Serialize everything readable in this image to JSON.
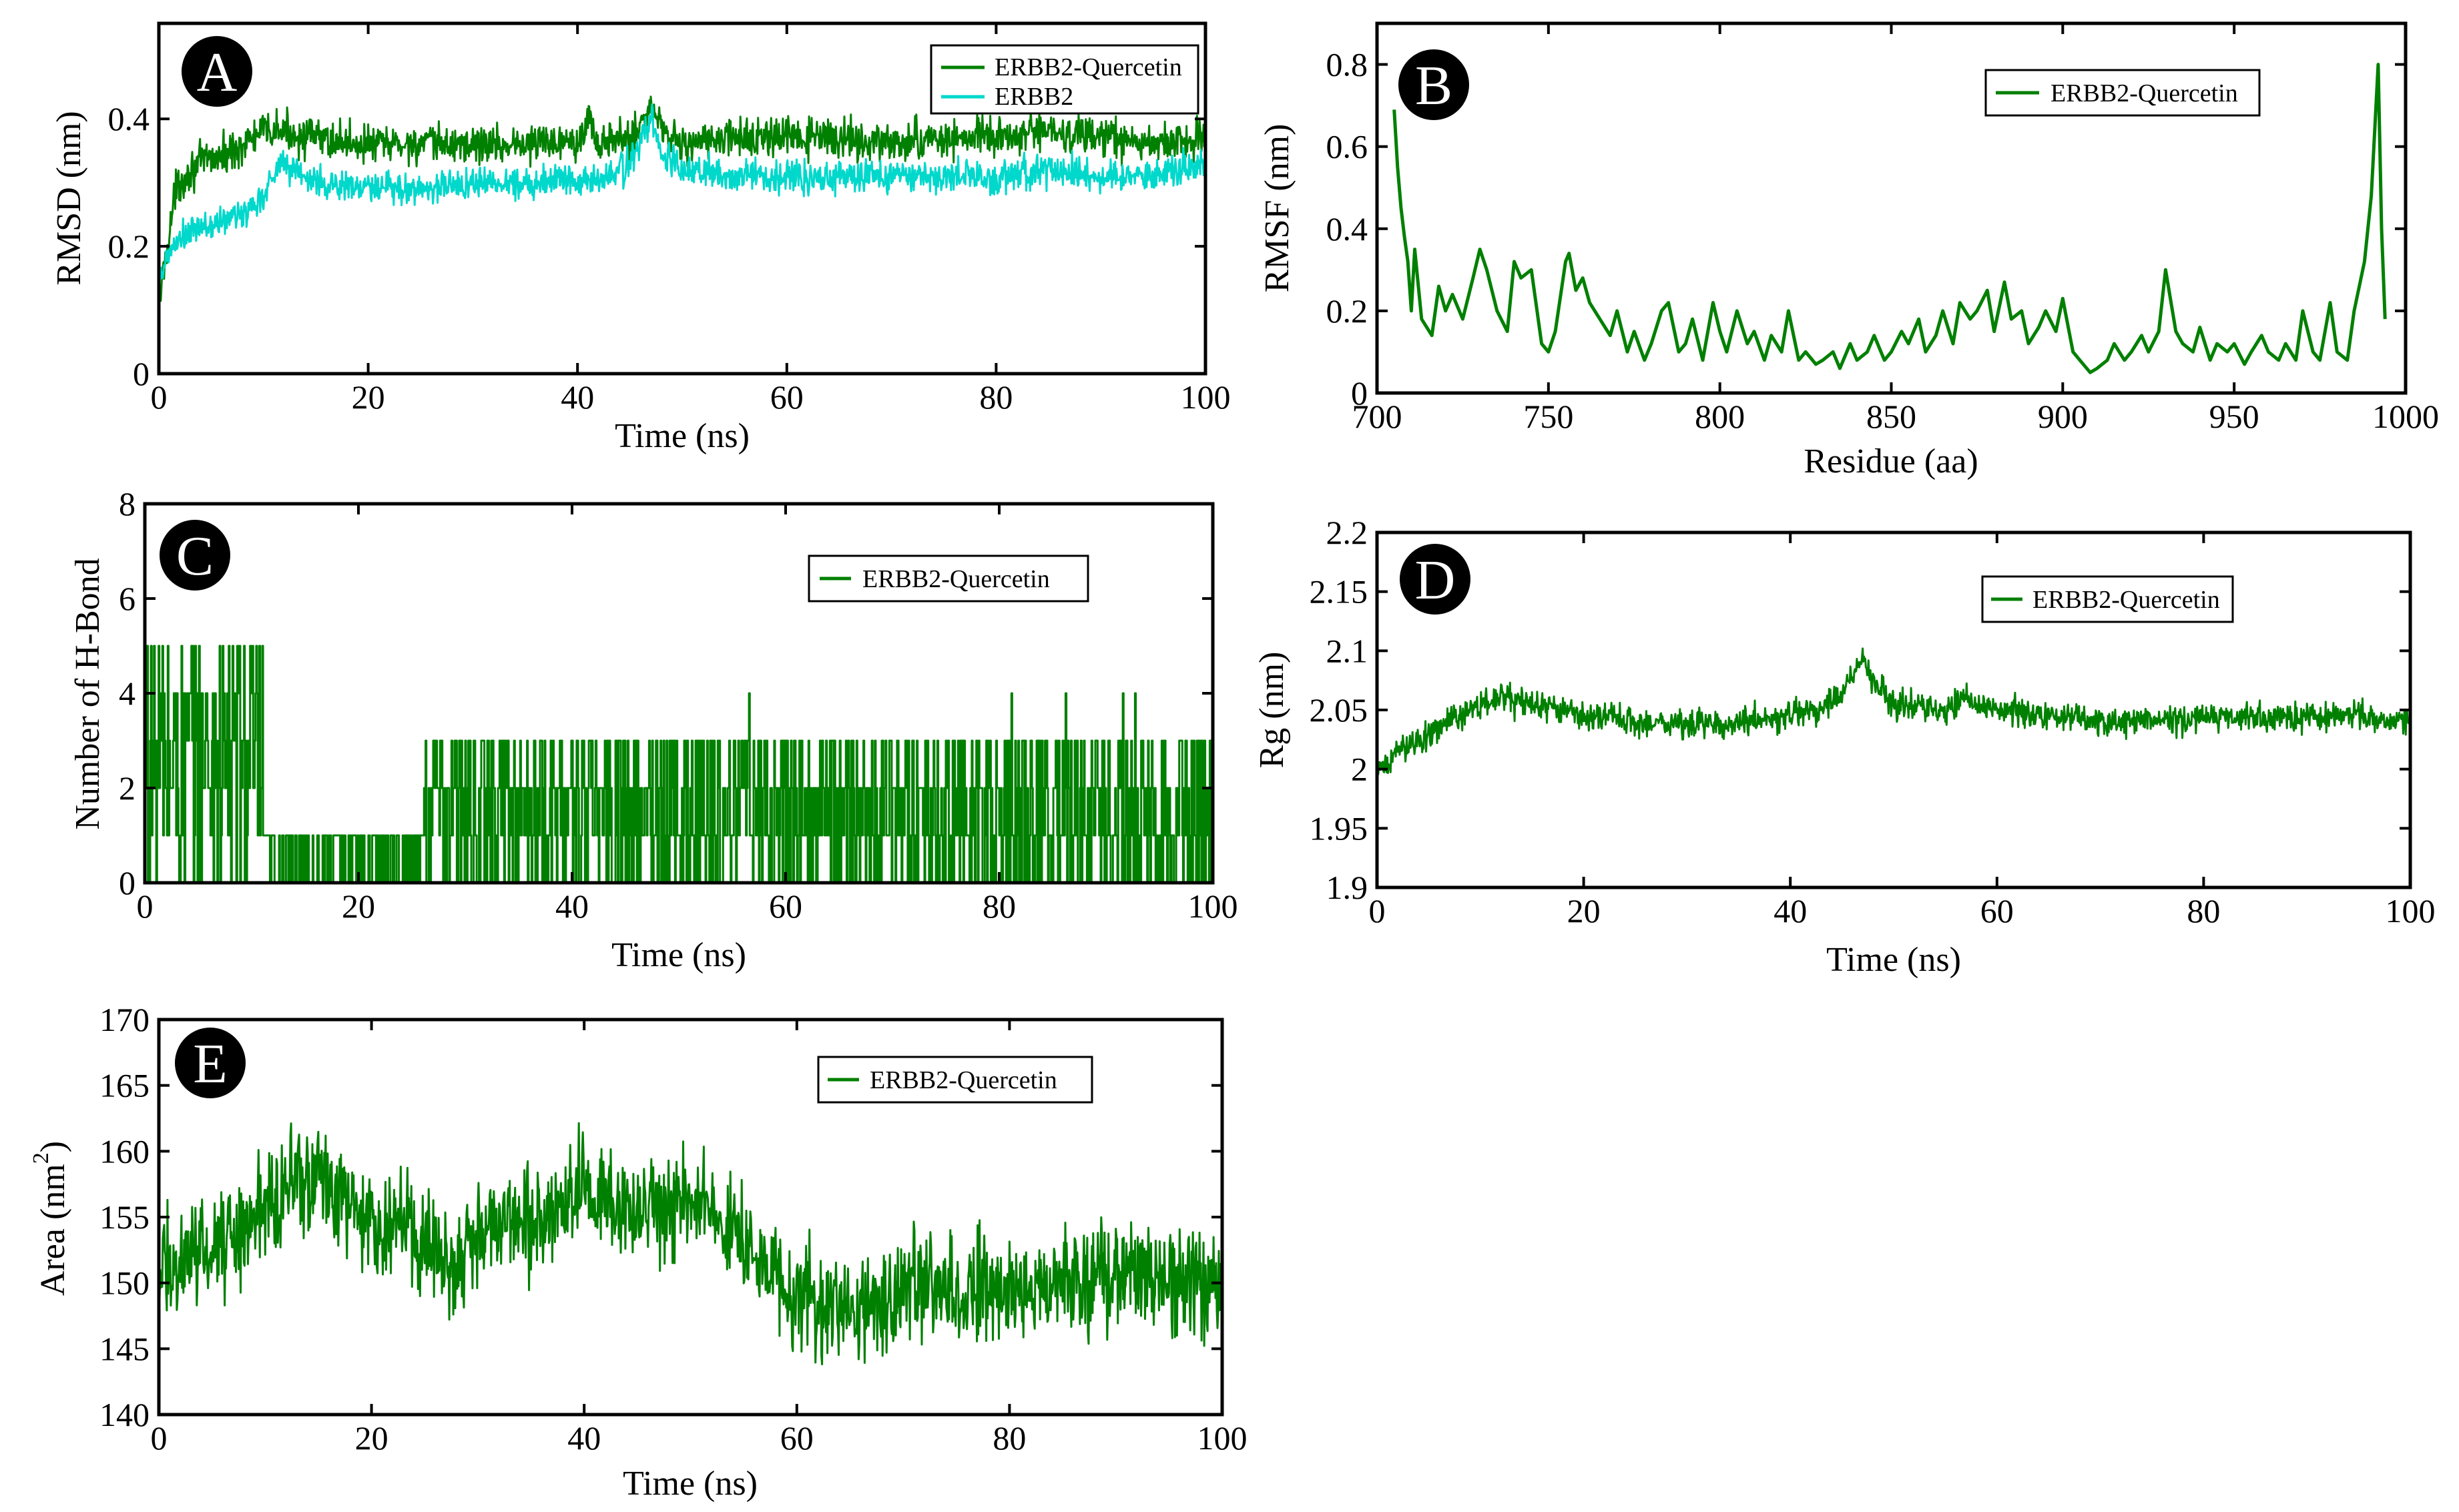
{
  "colors": {
    "quercetin": "#008000",
    "erbb2": "#00d8cc",
    "frame": "#000000",
    "badge": "#000000"
  },
  "chart_data": [
    {
      "id": "A",
      "panel_label": "A",
      "type": "line",
      "xlabel": "Time (ns)",
      "ylabel": "RMSD (nm)",
      "xlim": [
        0,
        100
      ],
      "ylim": [
        0,
        0.55
      ],
      "x_ticks": [
        0,
        20,
        40,
        60,
        80,
        100
      ],
      "x_tick_labels": [
        "0",
        "20",
        "40",
        "60",
        "80",
        "100"
      ],
      "y_ticks": [
        0,
        0.2,
        0.4
      ],
      "y_tick_labels": [
        "0",
        "0.2",
        "0.4"
      ],
      "legend": [
        "ERBB2-Quercetin",
        "ERBB2"
      ],
      "legend_position": "top-right",
      "series": [
        {
          "name": "ERBB2-Quercetin",
          "color": "#008000",
          "x": [
            0,
            0.5,
            1,
            1.5,
            2,
            3,
            4,
            5,
            6,
            8,
            10,
            11,
            12,
            15,
            20,
            25,
            30,
            35,
            40,
            41,
            42,
            45,
            46,
            47,
            48,
            50,
            55,
            60,
            65,
            70,
            75,
            80,
            85,
            90,
            95,
            100
          ],
          "y": [
            0.1,
            0.17,
            0.22,
            0.28,
            0.3,
            0.32,
            0.33,
            0.34,
            0.34,
            0.36,
            0.38,
            0.38,
            0.38,
            0.37,
            0.36,
            0.36,
            0.36,
            0.36,
            0.37,
            0.4,
            0.36,
            0.37,
            0.39,
            0.42,
            0.39,
            0.36,
            0.37,
            0.37,
            0.37,
            0.36,
            0.37,
            0.37,
            0.38,
            0.37,
            0.36,
            0.37
          ],
          "noise": 0.03
        },
        {
          "name": "ERBB2",
          "color": "#00d8cc",
          "x": [
            0,
            1,
            2,
            3,
            4,
            5,
            6,
            8,
            10,
            11,
            12,
            15,
            20,
            25,
            30,
            35,
            40,
            42,
            45,
            46,
            47,
            48,
            50,
            55,
            60,
            65,
            70,
            75,
            80,
            85,
            90,
            95,
            100
          ],
          "y": [
            0.14,
            0.19,
            0.21,
            0.22,
            0.23,
            0.23,
            0.24,
            0.25,
            0.28,
            0.32,
            0.33,
            0.3,
            0.29,
            0.29,
            0.3,
            0.3,
            0.31,
            0.3,
            0.33,
            0.36,
            0.4,
            0.35,
            0.32,
            0.31,
            0.31,
            0.31,
            0.31,
            0.31,
            0.31,
            0.32,
            0.31,
            0.31,
            0.33
          ],
          "noise": 0.025
        }
      ]
    },
    {
      "id": "B",
      "panel_label": "B",
      "type": "line",
      "xlabel": "Residue (aa)",
      "ylabel": "RMSF (nm)",
      "xlim": [
        700,
        1000
      ],
      "ylim": [
        0,
        0.9
      ],
      "x_ticks": [
        700,
        750,
        800,
        850,
        900,
        950,
        1000
      ],
      "x_tick_labels": [
        "700",
        "750",
        "800",
        "850",
        "900",
        "950",
        "1000"
      ],
      "y_ticks": [
        0,
        0.2,
        0.4,
        0.6,
        0.8
      ],
      "y_tick_labels": [
        "0",
        "0.2",
        "0.4",
        "0.6",
        "0.8"
      ],
      "legend": [
        "ERBB2-Quercetin"
      ],
      "legend_position": "top-right",
      "series": [
        {
          "name": "ERBB2-Quercetin",
          "color": "#008000",
          "x": [
            705,
            706,
            707,
            708,
            709,
            710,
            711,
            713,
            716,
            718,
            720,
            722,
            725,
            728,
            730,
            732,
            735,
            738,
            740,
            742,
            745,
            748,
            750,
            752,
            755,
            756,
            758,
            760,
            762,
            765,
            768,
            770,
            773,
            775,
            778,
            780,
            783,
            785,
            788,
            790,
            792,
            795,
            798,
            800,
            802,
            805,
            808,
            810,
            813,
            815,
            818,
            820,
            823,
            825,
            828,
            830,
            833,
            835,
            838,
            840,
            843,
            845,
            848,
            850,
            853,
            855,
            858,
            860,
            863,
            865,
            868,
            870,
            873,
            875,
            878,
            880,
            883,
            885,
            888,
            890,
            893,
            895,
            898,
            900,
            903,
            905,
            908,
            910,
            913,
            915,
            918,
            920,
            923,
            925,
            928,
            930,
            933,
            935,
            938,
            940,
            943,
            945,
            948,
            950,
            953,
            955,
            958,
            960,
            963,
            965,
            968,
            970,
            973,
            975,
            978,
            980,
            983,
            985,
            988,
            990,
            992,
            993,
            994
          ],
          "y": [
            0.69,
            0.55,
            0.45,
            0.38,
            0.32,
            0.2,
            0.35,
            0.18,
            0.14,
            0.26,
            0.2,
            0.24,
            0.18,
            0.28,
            0.35,
            0.3,
            0.2,
            0.15,
            0.32,
            0.28,
            0.3,
            0.12,
            0.1,
            0.15,
            0.32,
            0.34,
            0.25,
            0.28,
            0.22,
            0.18,
            0.14,
            0.2,
            0.1,
            0.15,
            0.08,
            0.12,
            0.2,
            0.22,
            0.1,
            0.12,
            0.18,
            0.08,
            0.22,
            0.15,
            0.1,
            0.2,
            0.12,
            0.15,
            0.08,
            0.14,
            0.1,
            0.2,
            0.08,
            0.1,
            0.07,
            0.08,
            0.1,
            0.06,
            0.12,
            0.08,
            0.1,
            0.14,
            0.08,
            0.1,
            0.15,
            0.12,
            0.18,
            0.1,
            0.14,
            0.2,
            0.12,
            0.22,
            0.18,
            0.2,
            0.25,
            0.15,
            0.27,
            0.18,
            0.2,
            0.12,
            0.16,
            0.2,
            0.15,
            0.23,
            0.1,
            0.08,
            0.05,
            0.06,
            0.08,
            0.12,
            0.08,
            0.1,
            0.14,
            0.1,
            0.15,
            0.3,
            0.15,
            0.12,
            0.1,
            0.16,
            0.08,
            0.12,
            0.1,
            0.12,
            0.07,
            0.1,
            0.14,
            0.1,
            0.08,
            0.12,
            0.08,
            0.2,
            0.1,
            0.08,
            0.22,
            0.1,
            0.08,
            0.2,
            0.32,
            0.48,
            0.8,
            0.4,
            0.18
          ],
          "noise": 0
        }
      ]
    },
    {
      "id": "C",
      "panel_label": "C",
      "type": "line",
      "xlabel": "Time (ns)",
      "ylabel": "Number of H-Bond",
      "xlim": [
        0,
        100
      ],
      "ylim": [
        0,
        8
      ],
      "x_ticks": [
        0,
        20,
        40,
        60,
        80,
        100
      ],
      "x_tick_labels": [
        "0",
        "20",
        "40",
        "60",
        "80",
        "100"
      ],
      "y_ticks": [
        0,
        2,
        4,
        6,
        8
      ],
      "y_tick_labels": [
        "0",
        "2",
        "4",
        "6",
        "8"
      ],
      "legend": [
        "ERBB2-Quercetin"
      ],
      "legend_position": "top-right",
      "series": [
        {
          "name": "ERBB2-Quercetin",
          "color": "#008000",
          "segments": [
            {
              "from": 0,
              "to": 11,
              "min": 0,
              "max": 5
            },
            {
              "from": 11,
              "to": 26,
              "min": 0,
              "max": 1
            },
            {
              "from": 26,
              "to": 56,
              "min": 0,
              "max": 3
            },
            {
              "from": 56,
              "to": 100,
              "min": 0,
              "max": 3
            }
          ],
          "spike_max": 4
        }
      ]
    },
    {
      "id": "D",
      "panel_label": "D",
      "type": "line",
      "xlabel": "Time (ns)",
      "ylabel": "Rg (nm)",
      "xlim": [
        0,
        100
      ],
      "ylim": [
        1.9,
        2.2
      ],
      "x_ticks": [
        0,
        20,
        40,
        60,
        80,
        100
      ],
      "x_tick_labels": [
        "0",
        "20",
        "40",
        "60",
        "80",
        "100"
      ],
      "y_ticks": [
        1.9,
        1.95,
        2.0,
        2.05,
        2.1,
        2.15,
        2.2
      ],
      "y_tick_labels": [
        "1.9",
        "1.95",
        "2",
        "2.05",
        "2.1",
        "2.15",
        "2.2"
      ],
      "legend": [
        "ERBB2-Quercetin"
      ],
      "legend_position": "top-right",
      "series": [
        {
          "name": "ERBB2-Quercetin",
          "color": "#008000",
          "x": [
            0,
            2,
            5,
            8,
            10,
            12,
            15,
            20,
            25,
            30,
            35,
            40,
            43,
            45,
            46,
            47,
            48,
            50,
            55,
            57,
            60,
            65,
            70,
            75,
            80,
            85,
            90,
            95,
            100
          ],
          "y": [
            1.995,
            2.015,
            2.03,
            2.045,
            2.055,
            2.06,
            2.055,
            2.045,
            2.04,
            2.038,
            2.04,
            2.045,
            2.05,
            2.065,
            2.08,
            2.095,
            2.075,
            2.055,
            2.05,
            2.06,
            2.05,
            2.045,
            2.04,
            2.04,
            2.045,
            2.045,
            2.045,
            2.045,
            2.04
          ],
          "noise": 0.012
        }
      ]
    },
    {
      "id": "E",
      "panel_label": "E",
      "type": "line",
      "xlabel": "Time (ns)",
      "ylabel": "Area (nm",
      "ylabel_sup": "2",
      "ylabel_end": ")",
      "xlim": [
        0,
        100
      ],
      "ylim": [
        140,
        170
      ],
      "x_ticks": [
        0,
        20,
        40,
        60,
        80,
        100
      ],
      "x_tick_labels": [
        "0",
        "20",
        "40",
        "60",
        "80",
        "100"
      ],
      "y_ticks": [
        140,
        145,
        150,
        155,
        160,
        165,
        170
      ],
      "y_tick_labels": [
        "140",
        "145",
        "150",
        "155",
        "160",
        "165",
        "170"
      ],
      "legend": [
        "ERBB2-Quercetin"
      ],
      "legend_position": "top-right",
      "series": [
        {
          "name": "ERBB2-Quercetin",
          "color": "#008000",
          "x": [
            0,
            3,
            6,
            9,
            11,
            13,
            15,
            18,
            20,
            23,
            25,
            28,
            30,
            33,
            35,
            38,
            40,
            42,
            45,
            48,
            50,
            52,
            55,
            57,
            60,
            62,
            65,
            68,
            70,
            73,
            75,
            78,
            80,
            83,
            85,
            88,
            90,
            93,
            95,
            98,
            100
          ],
          "y": [
            151,
            152,
            153,
            155,
            157,
            158,
            158,
            156,
            155,
            154,
            153,
            152,
            154,
            155,
            155,
            156,
            157,
            157,
            155,
            156,
            157,
            155,
            153,
            151,
            149,
            148,
            148,
            149,
            149,
            150,
            149,
            150,
            149,
            150,
            150,
            150,
            151,
            151,
            150,
            150,
            150
          ],
          "noise": 4
        }
      ]
    }
  ]
}
